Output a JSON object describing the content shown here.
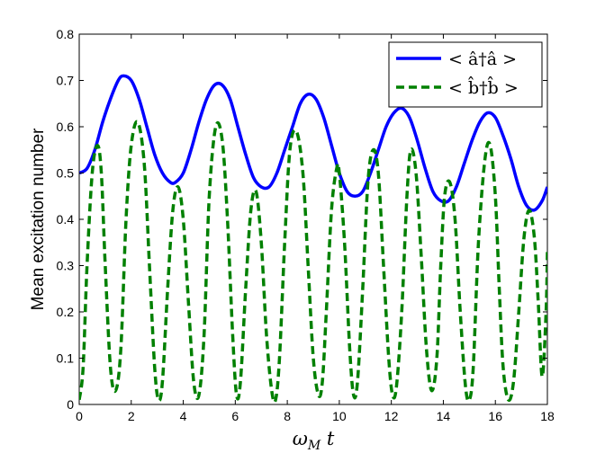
{
  "chart_data": {
    "type": "line",
    "xlabel": "ω_M t",
    "ylabel": "Mean excitation number",
    "xlim": [
      0,
      18
    ],
    "ylim": [
      0,
      0.8
    ],
    "xticks": [
      "0",
      "2",
      "4",
      "6",
      "8",
      "10",
      "12",
      "14",
      "16",
      "18"
    ],
    "yticks": [
      "0",
      "0.1",
      "0.2",
      "0.3",
      "0.4",
      "0.5",
      "0.6",
      "0.7",
      "0.8"
    ],
    "legend_position": "top-right",
    "grid": false,
    "series": [
      {
        "name": "< â†â >",
        "color": "#0000ff",
        "style": "solid",
        "x": [
          0,
          0.3,
          0.6,
          0.9,
          1.2,
          1.5,
          1.7,
          2.0,
          2.3,
          2.6,
          2.9,
          3.2,
          3.5,
          3.7,
          4.0,
          4.3,
          4.6,
          4.9,
          5.2,
          5.5,
          5.8,
          6.1,
          6.4,
          6.7,
          7.0,
          7.3,
          7.6,
          7.9,
          8.2,
          8.5,
          8.8,
          9.1,
          9.4,
          9.7,
          10.0,
          10.3,
          10.6,
          10.9,
          11.2,
          11.5,
          11.8,
          12.1,
          12.4,
          12.7,
          13.0,
          13.3,
          13.6,
          13.9,
          14.2,
          14.5,
          14.8,
          15.1,
          15.4,
          15.7,
          16.0,
          16.3,
          16.6,
          16.9,
          17.2,
          17.5,
          17.8,
          18.0
        ],
        "y": [
          0.5,
          0.51,
          0.55,
          0.61,
          0.66,
          0.7,
          0.71,
          0.7,
          0.66,
          0.6,
          0.54,
          0.5,
          0.48,
          0.48,
          0.5,
          0.55,
          0.61,
          0.66,
          0.69,
          0.69,
          0.66,
          0.6,
          0.54,
          0.49,
          0.47,
          0.47,
          0.5,
          0.55,
          0.6,
          0.65,
          0.67,
          0.66,
          0.62,
          0.56,
          0.5,
          0.46,
          0.45,
          0.46,
          0.5,
          0.55,
          0.6,
          0.63,
          0.64,
          0.62,
          0.57,
          0.51,
          0.46,
          0.44,
          0.44,
          0.47,
          0.52,
          0.57,
          0.61,
          0.63,
          0.62,
          0.58,
          0.53,
          0.47,
          0.43,
          0.42,
          0.44,
          0.47
        ]
      },
      {
        "name": "< b̂†b̂ >",
        "color": "#008000",
        "style": "dashed",
        "x": [
          0,
          0.15,
          0.3,
          0.5,
          0.7,
          0.85,
          1.0,
          1.2,
          1.4,
          1.6,
          1.8,
          2.0,
          2.25,
          2.5,
          2.7,
          2.9,
          3.05,
          3.2,
          3.4,
          3.6,
          3.8,
          4.0,
          4.2,
          4.4,
          4.6,
          4.8,
          5.0,
          5.25,
          5.5,
          5.7,
          5.9,
          6.05,
          6.2,
          6.4,
          6.6,
          6.8,
          7.0,
          7.2,
          7.4,
          7.55,
          7.7,
          7.9,
          8.1,
          8.35,
          8.6,
          8.8,
          9.0,
          9.2,
          9.35,
          9.5,
          9.7,
          9.9,
          10.0,
          10.2,
          10.4,
          10.55,
          10.7,
          10.9,
          11.1,
          11.3,
          11.5,
          11.7,
          11.9,
          12.05,
          12.2,
          12.4,
          12.6,
          12.75,
          12.95,
          13.15,
          13.35,
          13.55,
          13.75,
          13.9,
          14.05,
          14.25,
          14.45,
          14.65,
          14.85,
          15.0,
          15.15,
          15.35,
          15.6,
          15.8,
          16.0,
          16.15,
          16.3,
          16.5,
          16.7,
          16.9,
          17.1,
          17.3,
          17.5,
          17.65,
          17.8,
          17.95,
          18.0
        ],
        "y": [
          0.01,
          0.08,
          0.3,
          0.5,
          0.56,
          0.5,
          0.3,
          0.08,
          0.03,
          0.12,
          0.4,
          0.56,
          0.61,
          0.52,
          0.3,
          0.08,
          0.01,
          0.05,
          0.25,
          0.42,
          0.47,
          0.4,
          0.22,
          0.05,
          0.02,
          0.15,
          0.45,
          0.6,
          0.57,
          0.4,
          0.15,
          0.02,
          0.05,
          0.25,
          0.42,
          0.46,
          0.35,
          0.15,
          0.03,
          0.01,
          0.1,
          0.35,
          0.55,
          0.59,
          0.5,
          0.3,
          0.1,
          0.02,
          0.05,
          0.2,
          0.42,
          0.51,
          0.5,
          0.35,
          0.12,
          0.02,
          0.05,
          0.25,
          0.48,
          0.55,
          0.5,
          0.3,
          0.1,
          0.02,
          0.04,
          0.2,
          0.45,
          0.55,
          0.5,
          0.32,
          0.12,
          0.03,
          0.1,
          0.3,
          0.45,
          0.48,
          0.4,
          0.2,
          0.04,
          0.01,
          0.08,
          0.35,
          0.53,
          0.56,
          0.45,
          0.25,
          0.08,
          0.01,
          0.05,
          0.2,
          0.36,
          0.42,
          0.36,
          0.22,
          0.06,
          0.2,
          0.33
        ]
      }
    ]
  }
}
